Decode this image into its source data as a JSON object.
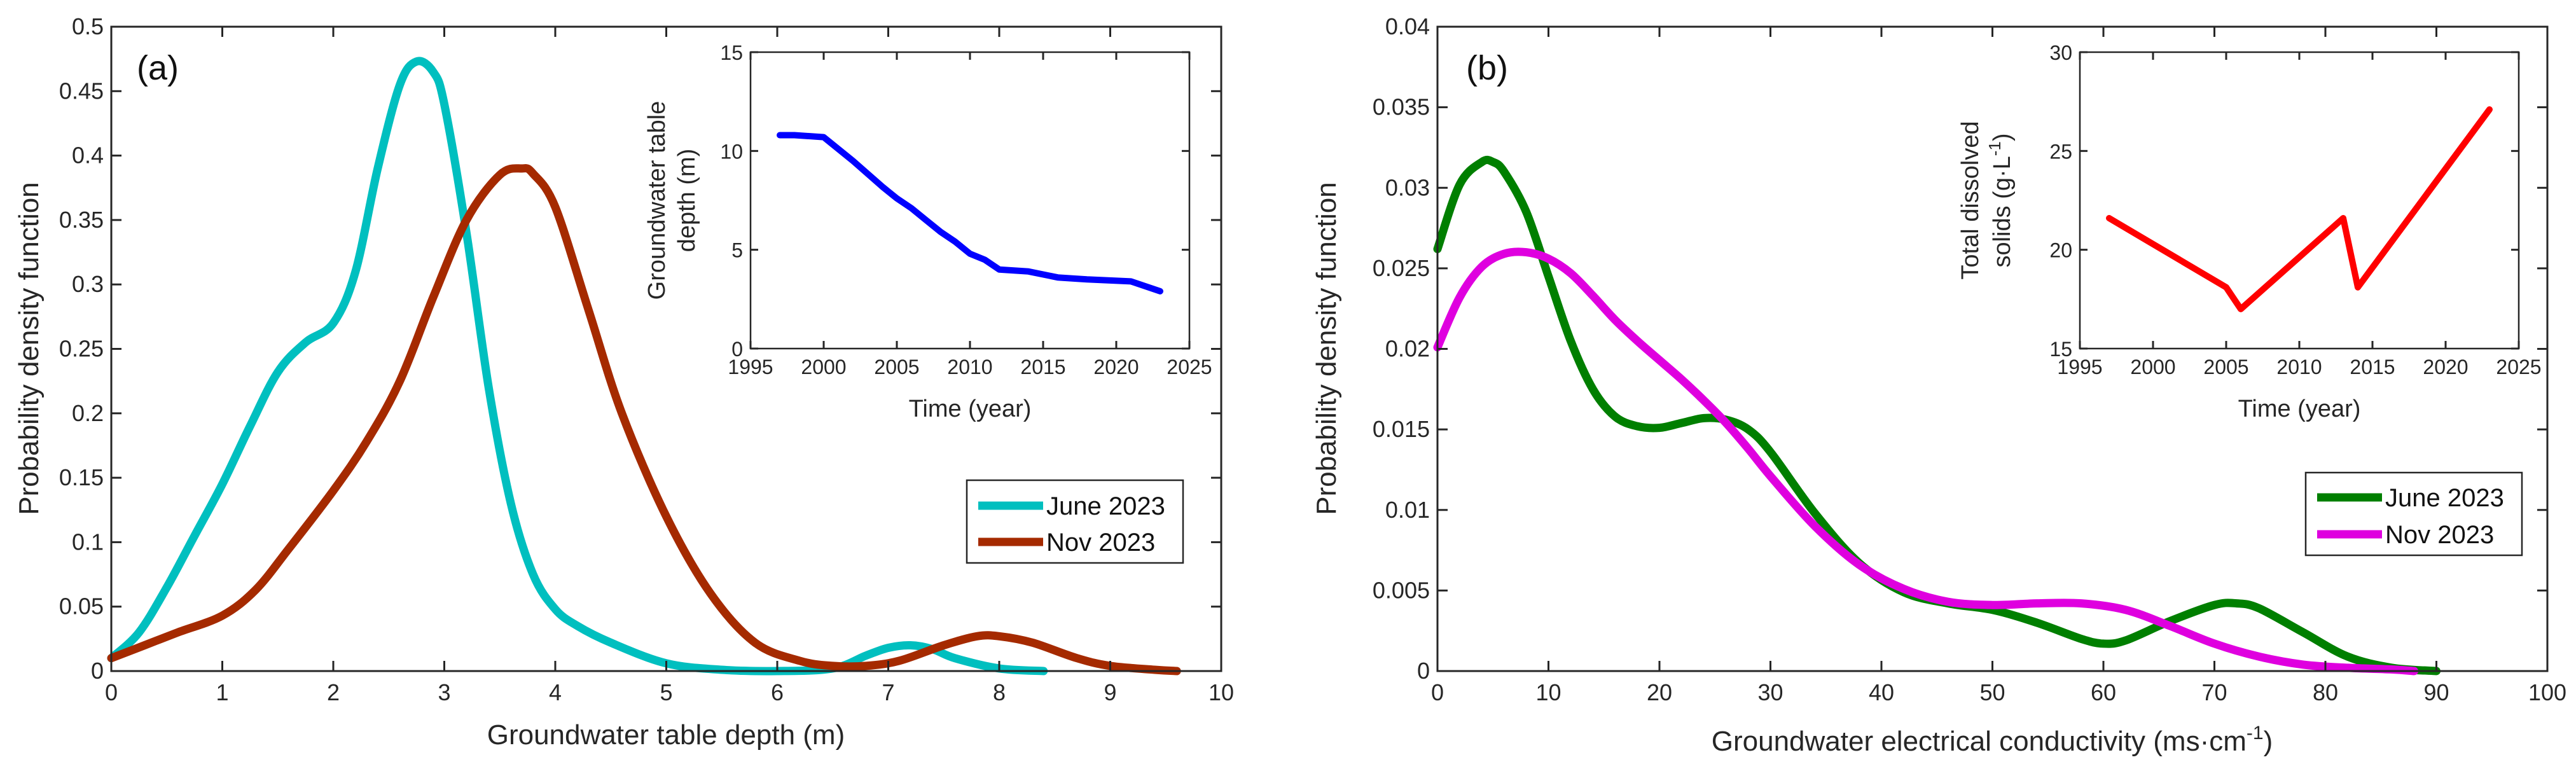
{
  "chart_data": [
    {
      "type": "line",
      "panel_label": "(a)",
      "title": "",
      "xlabel": "Groundwater table depth (m)",
      "ylabel": "Probability density function",
      "xlim": [
        0,
        10
      ],
      "ylim": [
        0,
        0.5
      ],
      "xticks": [
        0,
        1,
        2,
        3,
        4,
        5,
        6,
        7,
        8,
        9,
        10
      ],
      "yticks": [
        0,
        0.05,
        0.1,
        0.15,
        0.2,
        0.25,
        0.3,
        0.35,
        0.4,
        0.45,
        0.5
      ],
      "xtick_labels": [
        "0",
        "1",
        "2",
        "3",
        "4",
        "5",
        "6",
        "7",
        "8",
        "9",
        "10"
      ],
      "ytick_labels": [
        "0",
        "0.05",
        "0.1",
        "0.15",
        "0.2",
        "0.25",
        "0.3",
        "0.35",
        "0.4",
        "0.45",
        "0.5"
      ],
      "grid": false,
      "legend_position": "lower-right",
      "series": [
        {
          "name": "June 2023",
          "color": "#00bfbf",
          "x": [
            0,
            0.25,
            0.5,
            0.75,
            1.0,
            1.25,
            1.5,
            1.75,
            2.0,
            2.2,
            2.4,
            2.6,
            2.75,
            2.9,
            3.0,
            3.2,
            3.4,
            3.6,
            3.8,
            4.0,
            4.2,
            4.5,
            5.0,
            5.5,
            6.0,
            6.5,
            6.8,
            7.0,
            7.2,
            7.4,
            7.6,
            8.0,
            8.4
          ],
          "values": [
            0.01,
            0.03,
            0.065,
            0.105,
            0.145,
            0.19,
            0.232,
            0.255,
            0.27,
            0.31,
            0.39,
            0.455,
            0.473,
            0.465,
            0.44,
            0.34,
            0.22,
            0.13,
            0.075,
            0.048,
            0.035,
            0.022,
            0.006,
            0.001,
            0.0,
            0.002,
            0.012,
            0.018,
            0.02,
            0.017,
            0.01,
            0.002,
            0.0
          ]
        },
        {
          "name": "Nov 2023",
          "color": "#a52a00",
          "x": [
            0,
            0.3,
            0.6,
            1.0,
            1.3,
            1.6,
            2.0,
            2.3,
            2.6,
            2.9,
            3.2,
            3.5,
            3.7,
            3.8,
            4.0,
            4.3,
            4.6,
            5.0,
            5.4,
            5.8,
            6.2,
            6.5,
            6.8,
            7.1,
            7.5,
            7.8,
            8.0,
            8.3,
            8.7,
            9.0,
            9.4,
            9.6
          ],
          "values": [
            0.01,
            0.02,
            0.03,
            0.043,
            0.063,
            0.095,
            0.14,
            0.178,
            0.225,
            0.29,
            0.35,
            0.385,
            0.39,
            0.386,
            0.36,
            0.28,
            0.2,
            0.12,
            0.06,
            0.022,
            0.008,
            0.004,
            0.004,
            0.008,
            0.02,
            0.027,
            0.027,
            0.022,
            0.01,
            0.004,
            0.001,
            0.0
          ]
        }
      ],
      "inset": {
        "type": "line",
        "xlabel": "Time (year)",
        "ylabel_line1": "Groundwater table",
        "ylabel_line2": "depth (m)",
        "xlim": [
          1995,
          2025
        ],
        "ylim": [
          0,
          15
        ],
        "xticks": [
          1995,
          2000,
          2005,
          2010,
          2015,
          2020,
          2025
        ],
        "yticks": [
          0,
          5,
          10,
          15
        ],
        "xtick_labels": [
          "1995",
          "2000",
          "2005",
          "2010",
          "2015",
          "2020",
          "2025"
        ],
        "ytick_labels": [
          "0",
          "5",
          "10",
          "15"
        ],
        "color": "#0000ff",
        "x": [
          1997,
          1998,
          2000,
          2002,
          2004,
          2005,
          2006,
          2007,
          2008,
          2009,
          2010,
          2011,
          2012,
          2014,
          2016,
          2018,
          2021,
          2023
        ],
        "values": [
          10.8,
          10.8,
          10.7,
          9.5,
          8.2,
          7.6,
          7.1,
          6.5,
          5.9,
          5.4,
          4.8,
          4.5,
          4.0,
          3.9,
          3.6,
          3.5,
          3.4,
          2.9
        ]
      }
    },
    {
      "type": "line",
      "panel_label": "(b)",
      "title": "",
      "xlabel": "Groundwater electrical conductivity (ms·cm",
      "xlabel_sup": "-1",
      "xlabel_close": ")",
      "ylabel": "Probability density function",
      "xlim": [
        0,
        100
      ],
      "ylim": [
        0,
        0.04
      ],
      "xticks": [
        0,
        10,
        20,
        30,
        40,
        50,
        60,
        70,
        80,
        90,
        100
      ],
      "yticks": [
        0,
        0.005,
        0.01,
        0.015,
        0.02,
        0.025,
        0.03,
        0.035,
        0.04
      ],
      "xtick_labels": [
        "0",
        "10",
        "20",
        "30",
        "40",
        "50",
        "60",
        "70",
        "80",
        "90",
        "100"
      ],
      "ytick_labels": [
        "0",
        "0.005",
        "0.01",
        "0.015",
        "0.02",
        "0.025",
        "0.03",
        "0.035",
        "0.04"
      ],
      "grid": false,
      "legend_position": "lower-right",
      "series": [
        {
          "name": "June 2023",
          "color": "#007f00",
          "x": [
            0,
            2,
            4,
            5,
            6,
            8,
            10,
            12,
            14,
            16,
            18,
            20,
            22,
            24,
            26,
            28,
            30,
            34,
            38,
            42,
            46,
            50,
            54,
            58,
            60,
            62,
            66,
            70,
            72,
            74,
            78,
            82,
            86,
            90
          ],
          "values": [
            0.0262,
            0.0302,
            0.0316,
            0.0316,
            0.031,
            0.0285,
            0.0245,
            0.0205,
            0.0175,
            0.0158,
            0.0152,
            0.0151,
            0.0154,
            0.0157,
            0.0156,
            0.015,
            0.0136,
            0.0098,
            0.0067,
            0.0049,
            0.0042,
            0.0038,
            0.003,
            0.002,
            0.0017,
            0.0019,
            0.0031,
            0.0041,
            0.0042,
            0.0039,
            0.0024,
            0.0009,
            0.0002,
            0.0
          ]
        },
        {
          "name": "Nov 2023",
          "color": "#df00df",
          "x": [
            0,
            2,
            4,
            6,
            8,
            10,
            12,
            14,
            16,
            18,
            20,
            22,
            24,
            26,
            28,
            30,
            34,
            38,
            42,
            46,
            50,
            54,
            58,
            62,
            66,
            70,
            74,
            78,
            82,
            86,
            88
          ],
          "values": [
            0.0201,
            0.0232,
            0.0251,
            0.0259,
            0.026,
            0.0256,
            0.0247,
            0.0233,
            0.0218,
            0.0205,
            0.0193,
            0.0181,
            0.0168,
            0.0154,
            0.0138,
            0.0121,
            0.009,
            0.0066,
            0.0051,
            0.0043,
            0.0041,
            0.0042,
            0.0042,
            0.0038,
            0.0028,
            0.0017,
            0.0009,
            0.0004,
            0.0002,
            0.0001,
            0.0
          ]
        }
      ],
      "inset": {
        "type": "line",
        "xlabel": "Time (year)",
        "ylabel_line1": "Total dissolved",
        "ylabel_line2_pre": "solids (g·L",
        "ylabel_line2_sup": "-1",
        "ylabel_line2_post": ")",
        "xlim": [
          1995,
          2025
        ],
        "ylim": [
          15,
          30
        ],
        "xticks": [
          1995,
          2000,
          2005,
          2010,
          2015,
          2020,
          2025
        ],
        "yticks": [
          15,
          20,
          25,
          30
        ],
        "xtick_labels": [
          "1995",
          "2000",
          "2005",
          "2010",
          "2015",
          "2020",
          "2025"
        ],
        "ytick_labels": [
          "15",
          "20",
          "25",
          "30"
        ],
        "color": "#ff0000",
        "x": [
          1997,
          2005,
          2006,
          2013,
          2014,
          2023
        ],
        "values": [
          21.6,
          18.1,
          17.0,
          21.6,
          18.1,
          27.1
        ]
      }
    }
  ]
}
